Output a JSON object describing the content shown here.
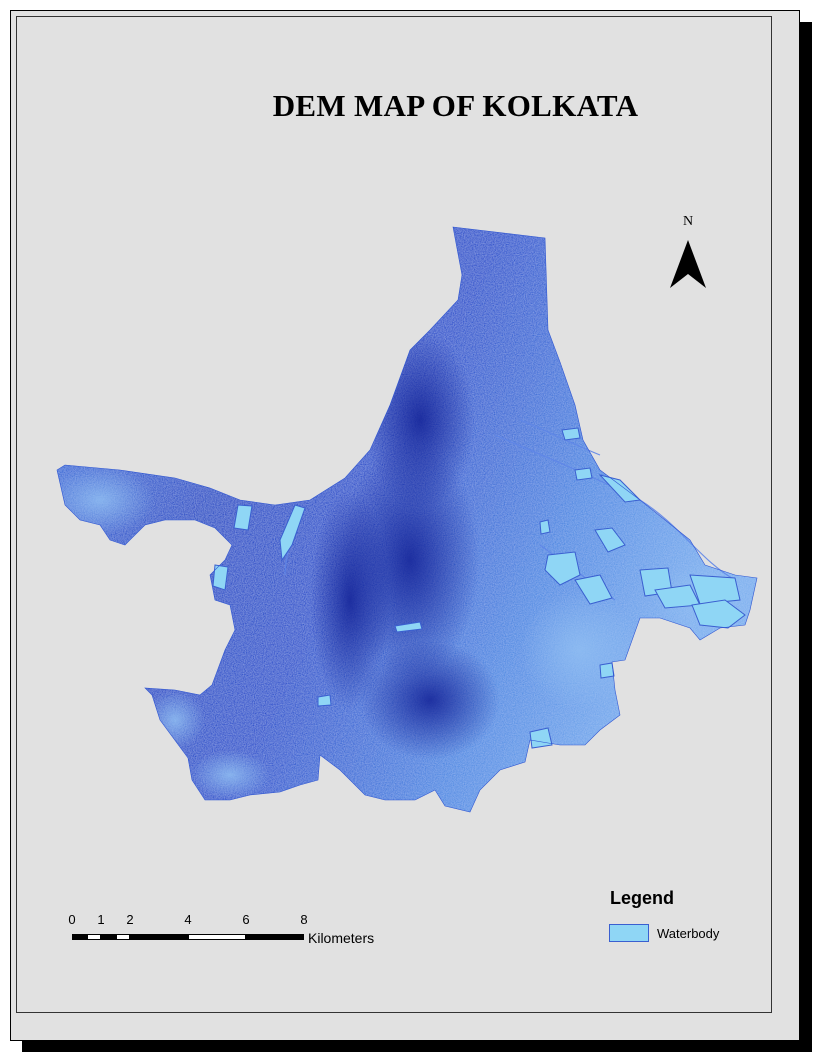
{
  "map": {
    "title": "DEM MAP OF KOLKATA",
    "north_label": "N",
    "legend": {
      "title": "Legend",
      "items": [
        {
          "label": "Waterbody",
          "color": "#8fd6f5",
          "outline": "#3a5fd0"
        }
      ]
    },
    "scale_bar": {
      "ticks": [
        "0",
        "1",
        "2",
        "4",
        "6",
        "8"
      ],
      "units": "Kilometers"
    },
    "colors": {
      "background": "#e1e1e1",
      "dem_dark": "#1c2fa8",
      "dem_mid": "#2f62d6",
      "dem_light": "#6ea2ea",
      "water": "#8fd6f5"
    }
  }
}
